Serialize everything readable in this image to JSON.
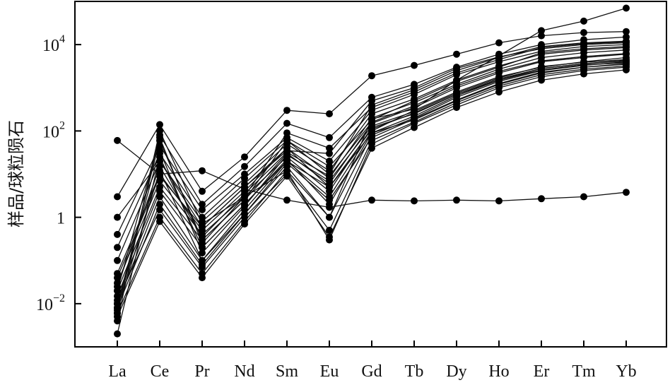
{
  "chart_data": {
    "type": "line",
    "title": "",
    "xlabel": "",
    "ylabel": "样品/球粒陨石",
    "yscale": "log",
    "ylim": [
      0.001,
      100000
    ],
    "categories": [
      "La",
      "Ce",
      "Pr",
      "Nd",
      "Sm",
      "Eu",
      "Gd",
      "Tb",
      "Dy",
      "Ho",
      "Er",
      "Tm",
      "Yb"
    ],
    "y_ticks": [
      {
        "value": 0.01,
        "base": "10",
        "exp": "−2"
      },
      {
        "value": 1,
        "base": "1",
        "exp": ""
      },
      {
        "value": 100,
        "base": "10",
        "exp": "2"
      },
      {
        "value": 10000,
        "base": "10",
        "exp": "4"
      }
    ],
    "series": [
      {
        "values": [
          60,
          10,
          12,
          4.5,
          2.5,
          1.7,
          2.5,
          2.4,
          2.5,
          2.4,
          2.7,
          3,
          3.8
        ]
      },
      {
        "values": [
          0.004,
          100,
          0.7,
          3,
          12,
          1,
          190,
          320,
          1500,
          5500,
          21000,
          35000,
          70000
        ]
      },
      {
        "values": [
          3,
          140,
          4,
          25,
          300,
          250,
          1900,
          3300,
          6000,
          11000,
          16000,
          19000,
          20000
        ]
      },
      {
        "values": [
          0.006,
          80,
          2,
          15,
          150,
          70,
          600,
          1200,
          3000,
          6000,
          10000,
          13000,
          15000
        ]
      },
      {
        "values": [
          0.2,
          30,
          1,
          8,
          60,
          10,
          400,
          900,
          2500,
          5000,
          9000,
          11000,
          12000
        ]
      },
      {
        "values": [
          0.01,
          3,
          0.1,
          1.5,
          20,
          3,
          100,
          300,
          800,
          1800,
          3000,
          4000,
          5000
        ]
      },
      {
        "values": [
          0.02,
          5,
          0.3,
          2.5,
          30,
          6,
          150,
          350,
          1000,
          2200,
          4000,
          5000,
          6000
        ]
      },
      {
        "values": [
          0.05,
          10,
          0.5,
          4,
          40,
          8,
          200,
          450,
          1200,
          2700,
          5000,
          6500,
          7500
        ]
      },
      {
        "values": [
          0.1,
          20,
          0.8,
          6,
          50,
          12,
          250,
          550,
          1500,
          3200,
          6000,
          7500,
          8500
        ]
      },
      {
        "values": [
          0.006,
          1,
          0.05,
          0.8,
          12,
          0.3,
          50,
          150,
          400,
          1000,
          1800,
          2500,
          3000
        ]
      },
      {
        "values": [
          0.008,
          2,
          0.08,
          1.2,
          15,
          1,
          80,
          200,
          600,
          1400,
          2500,
          3300,
          4000
        ]
      },
      {
        "values": [
          0.03,
          7,
          0.4,
          3,
          25,
          4,
          120,
          250,
          700,
          1600,
          2800,
          3600,
          4200
        ]
      },
      {
        "values": [
          0.015,
          4,
          0.2,
          2,
          22,
          2,
          90,
          220,
          650,
          1500,
          2600,
          3400,
          3800
        ]
      },
      {
        "values": [
          0.4,
          45,
          1.5,
          10,
          70,
          20,
          300,
          700,
          2000,
          4000,
          7000,
          9000,
          10000
        ]
      },
      {
        "values": [
          0.012,
          1.5,
          0.07,
          1,
          10,
          0.5,
          60,
          160,
          450,
          1100,
          2000,
          2700,
          3200
        ]
      },
      {
        "values": [
          0.04,
          9,
          0.6,
          5,
          35,
          30,
          500,
          1000,
          2800,
          5200,
          8000,
          10000,
          11000
        ]
      },
      {
        "values": [
          0.008,
          60,
          0.3,
          2.5,
          60,
          15,
          180,
          500,
          1400,
          3000,
          6500,
          8000,
          9000
        ]
      },
      {
        "values": [
          1,
          20,
          0.6,
          5,
          40,
          5,
          90,
          180,
          500,
          1200,
          2200,
          3000,
          3500
        ]
      },
      {
        "values": [
          0.02,
          70,
          0.25,
          3,
          90,
          40,
          350,
          800,
          2200,
          4500,
          8500,
          10500,
          11500
        ]
      },
      {
        "values": [
          0.01,
          35,
          0.15,
          1.8,
          28,
          7,
          130,
          280,
          750,
          1700,
          3100,
          3900,
          4500
        ]
      },
      {
        "values": [
          0.025,
          15,
          0.35,
          3.5,
          32,
          9,
          160,
          380,
          1100,
          2400,
          4200,
          5300,
          6200
        ]
      },
      {
        "values": [
          0.007,
          12,
          0.1,
          1.2,
          18,
          2.5,
          70,
          190,
          520,
          1250,
          2300,
          3000,
          3600
        ]
      },
      {
        "values": [
          0.005,
          0.8,
          0.04,
          0.7,
          9,
          0.35,
          40,
          120,
          350,
          800,
          1500,
          2100,
          2600
        ]
      },
      {
        "values": [
          0.002,
          25,
          0.2,
          2,
          20,
          5,
          110,
          260,
          700,
          1500,
          2800,
          3600,
          4300
        ]
      }
    ]
  }
}
